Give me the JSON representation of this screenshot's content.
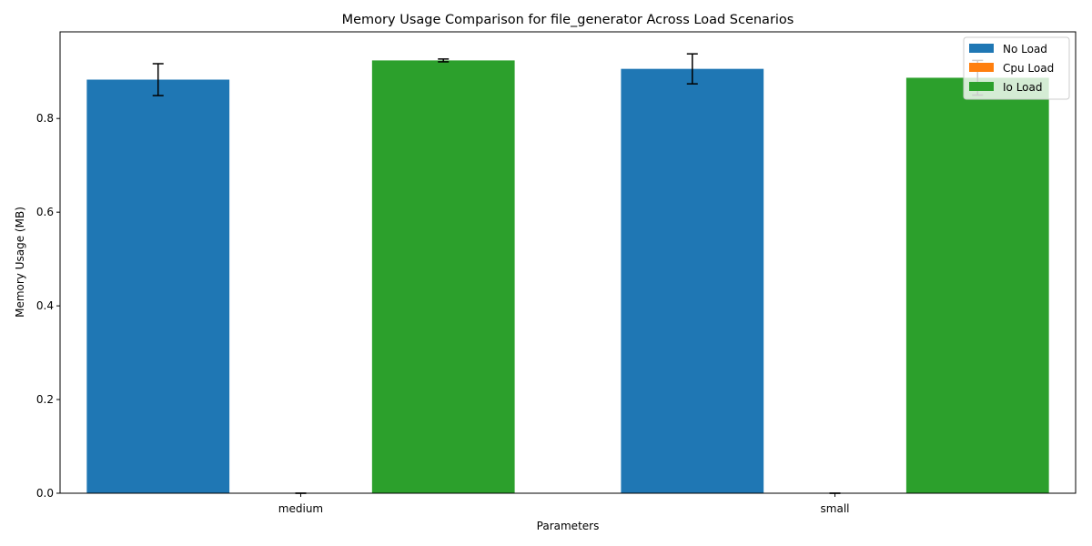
{
  "chart_data": {
    "type": "bar",
    "title": "Memory Usage Comparison for file_generator Across Load Scenarios",
    "xlabel": "Parameters",
    "ylabel": "Memory Usage (MB)",
    "categories": [
      "medium",
      "small"
    ],
    "ylim": [
      0,
      0.985
    ],
    "yticks": [
      "0.0",
      "0.2",
      "0.4",
      "0.6",
      "0.8"
    ],
    "grid": false,
    "legend_position": "top-right",
    "series": [
      {
        "name": "No Load",
        "color": "#1f77b4",
        "values": [
          0.883,
          0.906
        ],
        "errors": [
          0.034,
          0.032
        ]
      },
      {
        "name": "Cpu Load",
        "color": "#ff7f0e",
        "values": [
          0.0,
          0.0
        ],
        "errors": [
          0.0,
          0.0
        ]
      },
      {
        "name": "Io Load",
        "color": "#2ca02c",
        "values": [
          0.924,
          0.887
        ],
        "errors": [
          0.003,
          0.037
        ]
      }
    ]
  }
}
